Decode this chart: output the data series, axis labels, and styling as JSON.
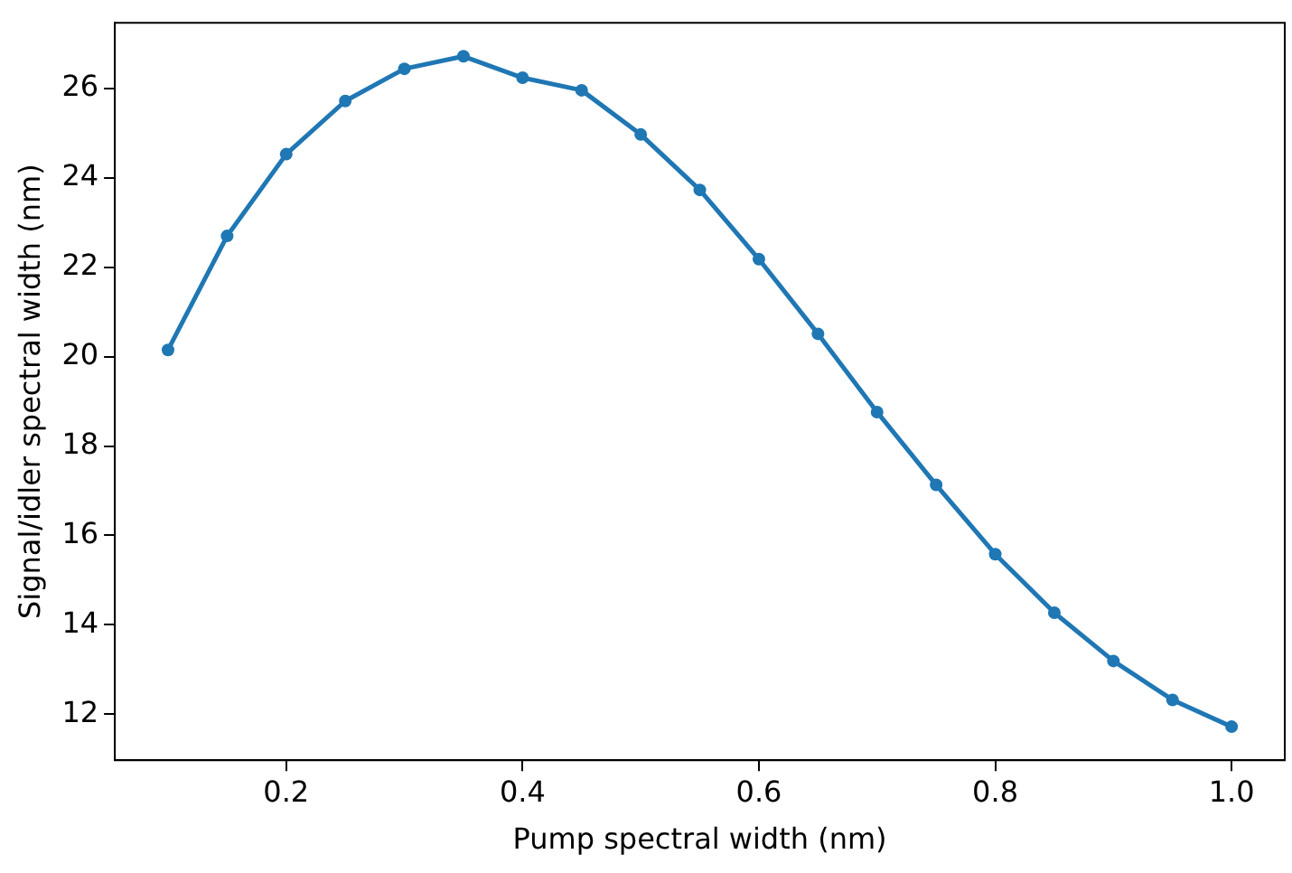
{
  "chart_data": {
    "type": "line",
    "xlabel": "Pump spectral width (nm)",
    "ylabel": "Signal/idler spectral width (nm)",
    "x": [
      0.1,
      0.15,
      0.2,
      0.25,
      0.3,
      0.35,
      0.4,
      0.45,
      0.5,
      0.55,
      0.6,
      0.65,
      0.7,
      0.75,
      0.8,
      0.85,
      0.9,
      0.95,
      1.0
    ],
    "series": [
      {
        "color": "#1f77b4",
        "values": [
          20.15,
          22.7,
          24.53,
          25.72,
          26.44,
          26.72,
          26.24,
          25.96,
          24.97,
          23.73,
          22.18,
          20.51,
          18.76,
          17.13,
          15.58,
          14.27,
          13.19,
          12.32,
          11.72
        ]
      }
    ],
    "xlim": [
      0.055,
      1.045
    ],
    "xticks": [
      0.2,
      0.4,
      0.6,
      0.8,
      {
        "value": 1.0,
        "label": "1.0"
      }
    ],
    "ylim": [
      10.97,
      27.47
    ],
    "yticks": [
      12,
      14,
      16,
      18,
      20,
      22,
      24,
      26
    ],
    "grid": false,
    "legend": false,
    "marker": "circle",
    "line_style": "solid"
  }
}
